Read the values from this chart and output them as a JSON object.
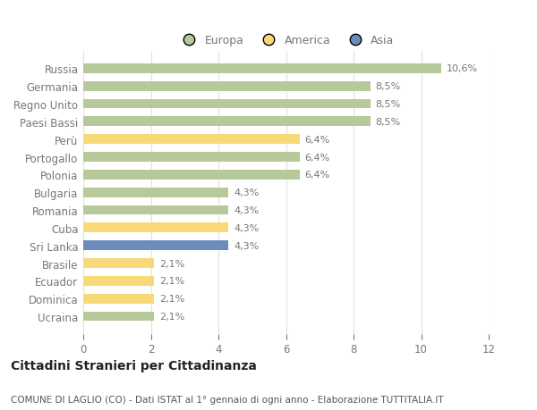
{
  "categories": [
    "Russia",
    "Germania",
    "Regno Unito",
    "Paesi Bassi",
    "Perù",
    "Portogallo",
    "Polonia",
    "Bulgaria",
    "Romania",
    "Cuba",
    "Sri Lanka",
    "Brasile",
    "Ecuador",
    "Dominica",
    "Ucraina"
  ],
  "values": [
    10.6,
    8.5,
    8.5,
    8.5,
    6.4,
    6.4,
    6.4,
    4.3,
    4.3,
    4.3,
    4.3,
    2.1,
    2.1,
    2.1,
    2.1
  ],
  "labels": [
    "10,6%",
    "8,5%",
    "8,5%",
    "8,5%",
    "6,4%",
    "6,4%",
    "6,4%",
    "4,3%",
    "4,3%",
    "4,3%",
    "4,3%",
    "2,1%",
    "2,1%",
    "2,1%",
    "2,1%"
  ],
  "continents": [
    "Europa",
    "Europa",
    "Europa",
    "Europa",
    "America",
    "Europa",
    "Europa",
    "Europa",
    "Europa",
    "America",
    "Asia",
    "America",
    "America",
    "America",
    "Europa"
  ],
  "colors": {
    "Europa": "#b5c99a",
    "America": "#f9d87a",
    "Asia": "#6b8cbd"
  },
  "xlim": [
    0,
    12
  ],
  "xticks": [
    0,
    2,
    4,
    6,
    8,
    10,
    12
  ],
  "title_main": "Cittadini Stranieri per Cittadinanza",
  "title_sub": "COMUNE DI LAGLIO (CO) - Dati ISTAT al 1° gennaio di ogni anno - Elaborazione TUTTITALIA.IT",
  "background_color": "#ffffff",
  "grid_color": "#e0e0e0",
  "bar_height": 0.55,
  "label_fontsize": 8,
  "ytick_fontsize": 8.5,
  "xtick_fontsize": 8.5,
  "legend_fontsize": 9,
  "label_color": "#777777",
  "title_main_fontsize": 10,
  "title_sub_fontsize": 7.5
}
